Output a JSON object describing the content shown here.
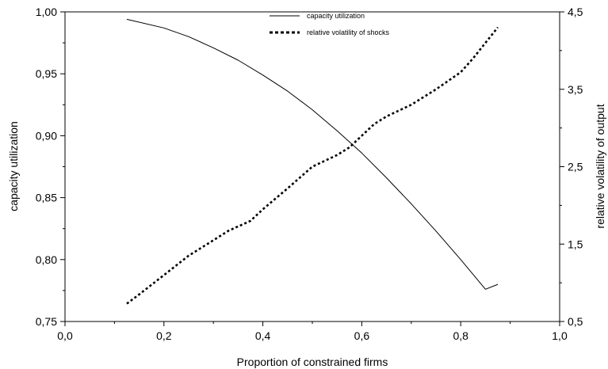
{
  "chart_data": {
    "type": "line",
    "xlabel": "Proportion of constrained firms",
    "ylabel": "capacity utilization",
    "y2label": "relative volatility of output",
    "xlim": [
      0,
      1
    ],
    "ylim": [
      0.75,
      1.0
    ],
    "y2lim": [
      0.5,
      4.5
    ],
    "x_ticks": [
      "0,0",
      "0,2",
      "0,4",
      "0,6",
      "0,8",
      "1,0"
    ],
    "y_ticks": [
      "0,75",
      "0,80",
      "0,85",
      "0,90",
      "0,95",
      "1,00"
    ],
    "y2_ticks": [
      "0,5",
      "1,5",
      "2,5",
      "3,5",
      "4,5"
    ],
    "legend_position": "top-center",
    "grid": false,
    "series": [
      {
        "name": "capacity utilization",
        "axis": "left",
        "style": "solid",
        "x": [
          0.125,
          0.2,
          0.25,
          0.3,
          0.35,
          0.4,
          0.45,
          0.5,
          0.55,
          0.6,
          0.65,
          0.7,
          0.75,
          0.8,
          0.85,
          0.875
        ],
        "y": [
          0.994,
          0.987,
          0.98,
          0.971,
          0.961,
          0.949,
          0.936,
          0.921,
          0.904,
          0.886,
          0.866,
          0.845,
          0.823,
          0.8,
          0.776,
          0.78
        ]
      },
      {
        "name": "relative volatility of shocks",
        "axis": "right",
        "style": "dotted",
        "x": [
          0.125,
          0.15,
          0.2,
          0.25,
          0.3,
          0.33,
          0.375,
          0.4,
          0.45,
          0.5,
          0.55,
          0.575,
          0.6,
          0.625,
          0.65,
          0.7,
          0.75,
          0.8,
          0.825,
          0.85,
          0.875
        ],
        "y": [
          0.73,
          0.85,
          1.1,
          1.35,
          1.55,
          1.67,
          1.8,
          1.95,
          2.22,
          2.5,
          2.65,
          2.75,
          2.9,
          3.05,
          3.15,
          3.3,
          3.5,
          3.72,
          3.9,
          4.1,
          4.3
        ]
      }
    ]
  }
}
